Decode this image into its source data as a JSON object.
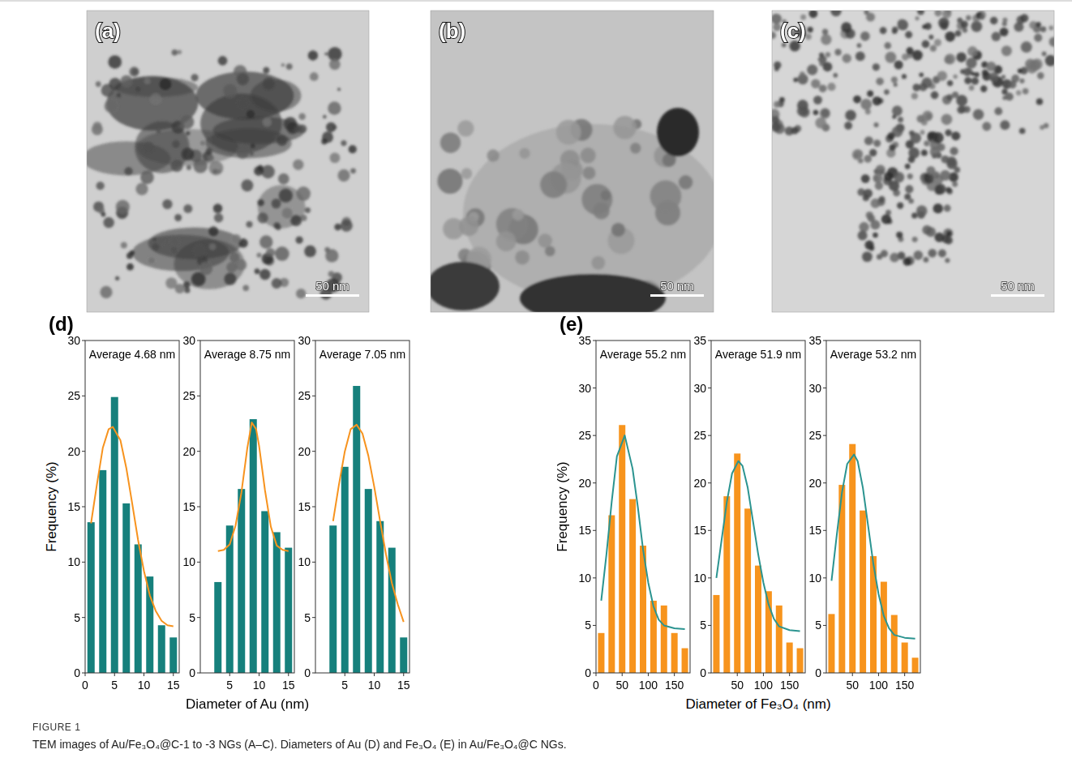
{
  "figure": {
    "label": "FIGURE 1",
    "caption": "TEM images of Au/Fe₃O₄@C-1 to -3 NGs (A–C). Diameters of Au (D) and Fe₃O₄ (E) in Au/Fe₃O₄@C NGs."
  },
  "images": [
    {
      "letter": "(a)",
      "scale_bar": "50 nm"
    },
    {
      "letter": "(b)",
      "scale_bar": "50 nm"
    },
    {
      "letter": "(c)",
      "scale_bar": "50 nm"
    }
  ],
  "histogram_panels": [
    {
      "letter": "(d)",
      "x_label": "Diameter of Au (nm)",
      "y_label": "Frequency (%)"
    },
    {
      "letter": "(e)",
      "x_label": "Diameter of Fe₃O₄ (nm)",
      "y_label": "Frequency (%)"
    }
  ],
  "chart_data": [
    {
      "type": "histogram",
      "annotation": "Average 4.68 nm",
      "bins": [
        0,
        2,
        4,
        6,
        8,
        10,
        12,
        14,
        16
      ],
      "values": [
        13.6,
        18.3,
        24.9,
        15.3,
        11.6,
        8.7,
        4.3,
        3.2
      ],
      "color": "#16807c",
      "fit": {
        "x": [
          1,
          2,
          3,
          4,
          4.7,
          6,
          7,
          8,
          9,
          10,
          11,
          12,
          13,
          14,
          15
        ],
        "values": [
          13.5,
          17,
          20.3,
          22,
          22.2,
          21,
          18.5,
          15.3,
          12,
          9.2,
          7,
          5.6,
          4.7,
          4.3,
          4.2
        ],
        "color": "#f7931e"
      },
      "xlim": [
        0,
        16
      ],
      "ylim": [
        0,
        30
      ],
      "xticks": [
        0,
        5,
        10,
        15
      ],
      "yticks": [
        0,
        5,
        10,
        15,
        20,
        25,
        30
      ]
    },
    {
      "type": "histogram",
      "annotation": "Average 8.75 nm",
      "bins": [
        2,
        4,
        6,
        8,
        10,
        12,
        14,
        16
      ],
      "values": [
        8.2,
        13.3,
        16.6,
        22.9,
        14.6,
        12.7,
        11.3
      ],
      "color": "#16807c",
      "fit": {
        "x": [
          3,
          4,
          5,
          6,
          7,
          8,
          8.75,
          9.5,
          10,
          11,
          12,
          13,
          14,
          15
        ],
        "values": [
          11,
          11.1,
          11.6,
          13.3,
          16.3,
          20.3,
          22.6,
          22,
          20.5,
          16.5,
          13.2,
          11.5,
          11.1,
          11
        ],
        "color": "#f7931e"
      },
      "xlim": [
        0,
        16
      ],
      "ylim": [
        0,
        30
      ],
      "xticks": [
        5,
        10,
        15
      ],
      "yticks": [
        0,
        5,
        10,
        15,
        20,
        25,
        30
      ]
    },
    {
      "type": "histogram",
      "annotation": "Average 7.05 nm",
      "bins": [
        2,
        4,
        6,
        8,
        10,
        12,
        14,
        16
      ],
      "values": [
        13.3,
        18.6,
        25.9,
        16.6,
        13.7,
        11.3,
        3.2
      ],
      "color": "#16807c",
      "fit": {
        "x": [
          3,
          4,
          5,
          6,
          7,
          8,
          9,
          10,
          11,
          12,
          13,
          14,
          15
        ],
        "values": [
          13.7,
          17,
          20,
          22,
          22.4,
          21.6,
          19.6,
          16.8,
          13.7,
          10.7,
          8.1,
          6.2,
          4.6
        ],
        "color": "#f7931e"
      },
      "xlim": [
        0,
        16
      ],
      "ylim": [
        0,
        30
      ],
      "xticks": [
        5,
        10,
        15
      ],
      "yticks": [
        0,
        5,
        10,
        15,
        20,
        25,
        30
      ]
    },
    {
      "type": "histogram",
      "annotation": "Average 55.2 nm",
      "bins": [
        0,
        20,
        40,
        60,
        80,
        100,
        120,
        140,
        160,
        180
      ],
      "values": [
        4.2,
        16.6,
        26.1,
        18.3,
        13.4,
        7.6,
        7.1,
        4.2,
        2.6
      ],
      "color": "#f7941d",
      "fit": {
        "x": [
          10,
          20,
          30,
          40,
          55,
          70,
          80,
          90,
          100,
          110,
          120,
          130,
          150,
          170
        ],
        "values": [
          7.6,
          12.5,
          18,
          22.8,
          25,
          21.5,
          17.5,
          13,
          9.5,
          7,
          5.6,
          5,
          4.7,
          4.6
        ],
        "color": "#2b9490"
      },
      "xlim": [
        0,
        180
      ],
      "ylim": [
        0,
        35
      ],
      "xticks": [
        0,
        50,
        100,
        150
      ],
      "yticks": [
        0,
        5,
        10,
        15,
        20,
        25,
        30,
        35
      ]
    },
    {
      "type": "histogram",
      "annotation": "Average 51.9 nm",
      "bins": [
        0,
        20,
        40,
        60,
        80,
        100,
        120,
        140,
        160,
        180
      ],
      "values": [
        8.2,
        18.6,
        23.1,
        17.3,
        11.3,
        8.6,
        7.1,
        3.2,
        2.6
      ],
      "color": "#f7941d",
      "fit": {
        "x": [
          10,
          20,
          30,
          40,
          52,
          60,
          70,
          80,
          90,
          100,
          110,
          120,
          130,
          150,
          170
        ],
        "values": [
          10,
          14,
          18,
          21,
          22.3,
          21.8,
          19.5,
          16,
          12.5,
          9.5,
          7.2,
          5.7,
          4.9,
          4.5,
          4.4
        ],
        "color": "#2b9490"
      },
      "xlim": [
        0,
        180
      ],
      "ylim": [
        0,
        35
      ],
      "xticks": [
        50,
        100,
        150
      ],
      "yticks": [
        0,
        5,
        10,
        15,
        20,
        25,
        30,
        35
      ]
    },
    {
      "type": "histogram",
      "annotation": "Average 53.2 nm",
      "bins": [
        0,
        20,
        40,
        60,
        80,
        100,
        120,
        140,
        160,
        180
      ],
      "values": [
        6.2,
        19.8,
        24.1,
        17.1,
        12.3,
        9.6,
        6.1,
        3.2,
        1.6
      ],
      "color": "#f7941d",
      "fit": {
        "x": [
          10,
          20,
          30,
          40,
          53,
          60,
          70,
          80,
          90,
          100,
          110,
          120,
          130,
          150,
          170
        ],
        "values": [
          9.7,
          14.5,
          19,
          22,
          23,
          22.3,
          19.5,
          15.5,
          11.5,
          8.3,
          6,
          4.7,
          4,
          3.7,
          3.6
        ],
        "color": "#2b9490"
      },
      "xlim": [
        0,
        180
      ],
      "ylim": [
        0,
        35
      ],
      "xticks": [
        50,
        100,
        150
      ],
      "yticks": [
        0,
        5,
        10,
        15,
        20,
        25,
        30,
        35
      ]
    }
  ]
}
